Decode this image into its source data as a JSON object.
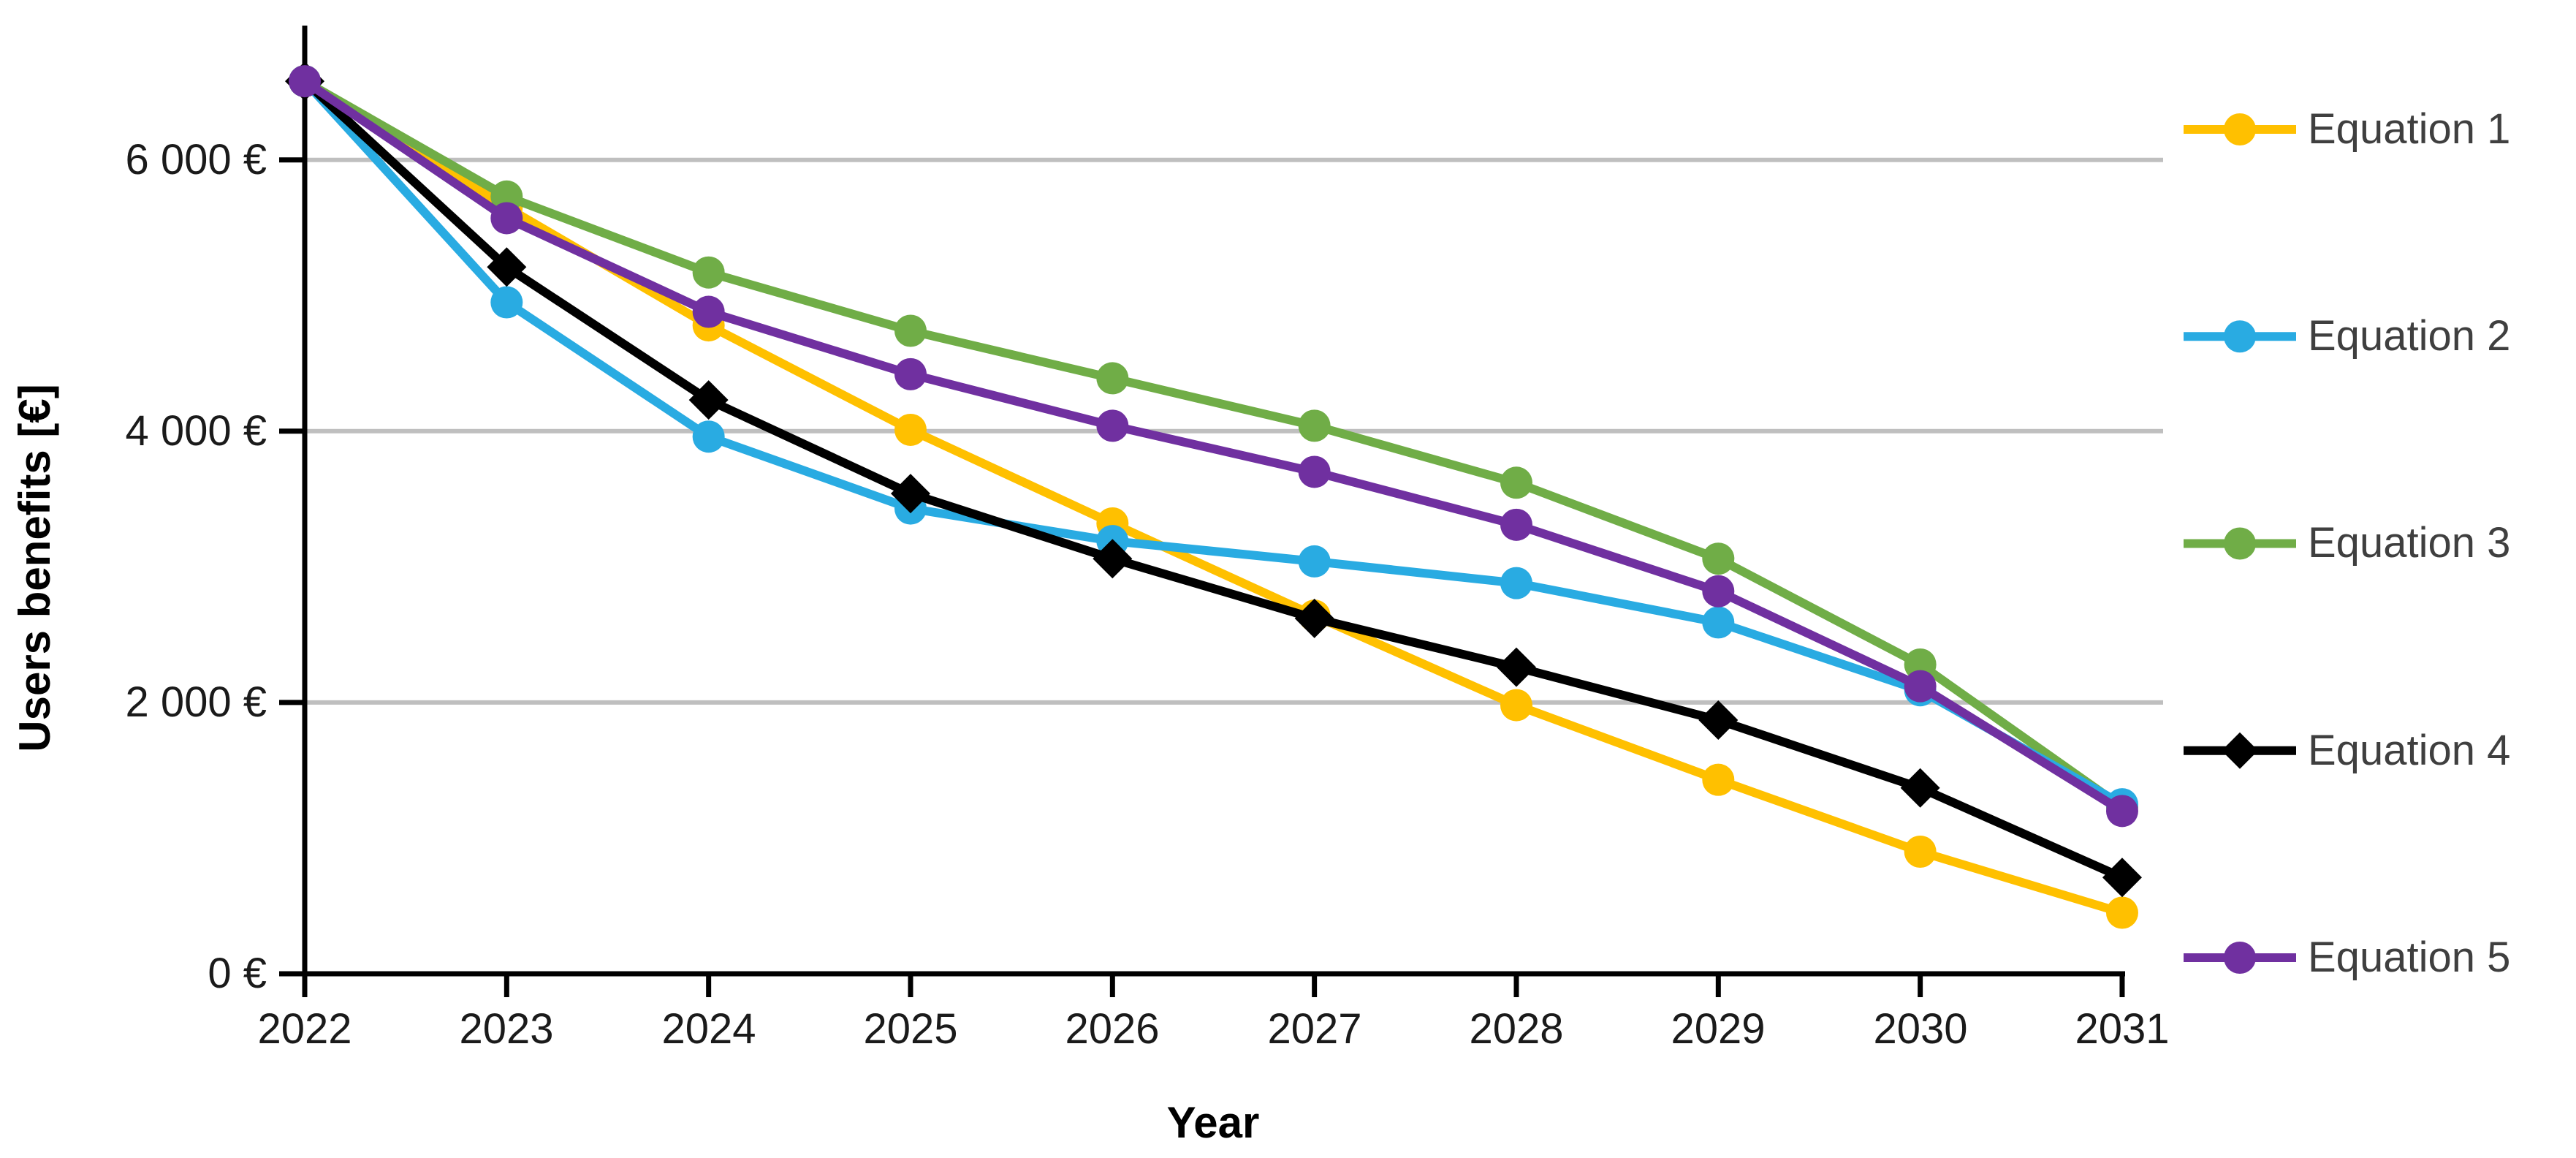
{
  "chart_data": {
    "type": "line",
    "title": "",
    "xlabel": "Year",
    "ylabel": "Users benefits [€]",
    "x": [
      2022,
      2023,
      2024,
      2025,
      2026,
      2027,
      2028,
      2029,
      2030,
      2031
    ],
    "series": [
      {
        "name": "Equation 1",
        "color": "#FFC000",
        "marker": "circle",
        "values": [
          6580,
          5650,
          4780,
          4010,
          3320,
          2640,
          1980,
          1430,
          900,
          450
        ]
      },
      {
        "name": "Equation 2",
        "color": "#29ABE2",
        "marker": "circle",
        "values": [
          6580,
          4950,
          3960,
          3430,
          3190,
          3040,
          2880,
          2590,
          2090,
          1250
        ]
      },
      {
        "name": "Equation 3",
        "color": "#70AD47",
        "marker": "circle",
        "values": [
          6580,
          5730,
          5170,
          4740,
          4390,
          4040,
          3620,
          3060,
          2280,
          1230
        ]
      },
      {
        "name": "Equation 4",
        "color": "#000000",
        "marker": "diamond",
        "values": [
          6580,
          5210,
          4230,
          3540,
          3060,
          2620,
          2260,
          1870,
          1370,
          710
        ]
      },
      {
        "name": "Equation 5",
        "color": "#7030A0",
        "marker": "circle",
        "values": [
          6580,
          5570,
          4880,
          4420,
          4040,
          3700,
          3310,
          2820,
          2120,
          1200
        ]
      }
    ],
    "ylim": [
      0,
      6800
    ],
    "ytick_values": [
      0,
      2000,
      4000,
      6000
    ],
    "ytick_labels": [
      "0 €",
      "2 000 €",
      "4 000 €",
      "6 000 €"
    ],
    "grid": "horizontal",
    "gridline_color": "#BFBFBF",
    "axis_color": "#000000",
    "legend_position": "right"
  }
}
